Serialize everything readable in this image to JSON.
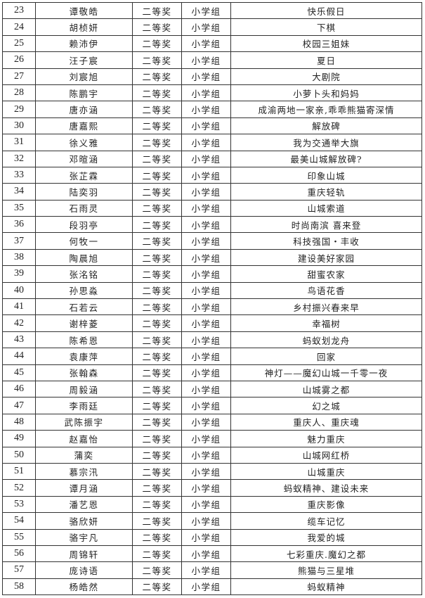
{
  "table": {
    "rows": [
      {
        "no": "23",
        "name": "谭敬皓",
        "award": "二等奖",
        "group": "小学组",
        "title": "快乐假日"
      },
      {
        "no": "24",
        "name": "胡桢妍",
        "award": "二等奖",
        "group": "小学组",
        "title": "下棋"
      },
      {
        "no": "25",
        "name": "赖沛伊",
        "award": "二等奖",
        "group": "小学组",
        "title": "校园三姐妹"
      },
      {
        "no": "26",
        "name": "汪子宸",
        "award": "二等奖",
        "group": "小学组",
        "title": "夏日"
      },
      {
        "no": "27",
        "name": "刘宸旭",
        "award": "二等奖",
        "group": "小学组",
        "title": "大剧院"
      },
      {
        "no": "28",
        "name": "陈鹏宇",
        "award": "二等奖",
        "group": "小学组",
        "title": "小萝卜头和妈妈"
      },
      {
        "no": "29",
        "name": "唐亦涵",
        "award": "二等奖",
        "group": "小学组",
        "title": "成渝两地一家亲,乖乖熊猫寄深情"
      },
      {
        "no": "30",
        "name": "唐嘉熙",
        "award": "二等奖",
        "group": "小学组",
        "title": "解放碑"
      },
      {
        "no": "31",
        "name": "徐义雅",
        "award": "二等奖",
        "group": "小学组",
        "title": "我为交通举大旗"
      },
      {
        "no": "32",
        "name": "邓暄涵",
        "award": "二等奖",
        "group": "小学组",
        "title": "最美山城解放碑?"
      },
      {
        "no": "33",
        "name": "张芷霖",
        "award": "二等奖",
        "group": "小学组",
        "title": "印象山城"
      },
      {
        "no": "34",
        "name": "陆奕羽",
        "award": "二等奖",
        "group": "小学组",
        "title": "重庆轻轨"
      },
      {
        "no": "35",
        "name": "石雨灵",
        "award": "二等奖",
        "group": "小学组",
        "title": "山城索道"
      },
      {
        "no": "36",
        "name": "段羽亭",
        "award": "二等奖",
        "group": "小学组",
        "title": "时尚南滨 喜来登"
      },
      {
        "no": "37",
        "name": "何牧一",
        "award": "二等奖",
        "group": "小学组",
        "title": "科技强国・丰收"
      },
      {
        "no": "38",
        "name": "陶晨旭",
        "award": "二等奖",
        "group": "小学组",
        "title": "建设美好家园"
      },
      {
        "no": "39",
        "name": "张洺铭",
        "award": "二等奖",
        "group": "小学组",
        "title": "甜蜜农家"
      },
      {
        "no": "40",
        "name": "孙思淼",
        "award": "二等奖",
        "group": "小学组",
        "title": "鸟语花香"
      },
      {
        "no": "41",
        "name": "石若云",
        "award": "二等奖",
        "group": "小学组",
        "title": "乡村振兴春来早"
      },
      {
        "no": "42",
        "name": "谢梓菱",
        "award": "二等奖",
        "group": "小学组",
        "title": "幸福树"
      },
      {
        "no": "43",
        "name": "陈希恩",
        "award": "二等奖",
        "group": "小学组",
        "title": "蚂蚁划龙舟"
      },
      {
        "no": "44",
        "name": "袁康萍",
        "award": "二等奖",
        "group": "小学组",
        "title": "回家"
      },
      {
        "no": "45",
        "name": "张翰森",
        "award": "二等奖",
        "group": "小学组",
        "title": "神灯——魔幻山城一千零一夜"
      },
      {
        "no": "46",
        "name": "周毅涵",
        "award": "二等奖",
        "group": "小学组",
        "title": "山城雾之都"
      },
      {
        "no": "47",
        "name": "李雨廷",
        "award": "二等奖",
        "group": "小学组",
        "title": "幻之城"
      },
      {
        "no": "48",
        "name": "武陈振宇",
        "award": "二等奖",
        "group": "小学组",
        "title": "重庆人、重庆魂"
      },
      {
        "no": "49",
        "name": "赵嘉怡",
        "award": "二等奖",
        "group": "小学组",
        "title": "魅力重庆"
      },
      {
        "no": "50",
        "name": "蒲奕",
        "award": "二等奖",
        "group": "小学组",
        "title": "山城网红桥"
      },
      {
        "no": "51",
        "name": "慕宗汛",
        "award": "二等奖",
        "group": "小学组",
        "title": "山城重庆"
      },
      {
        "no": "52",
        "name": "谭月涵",
        "award": "二等奖",
        "group": "小学组",
        "title": "蚂蚁精神、建设未来"
      },
      {
        "no": "53",
        "name": "潘艺恩",
        "award": "二等奖",
        "group": "小学组",
        "title": "重庆影像"
      },
      {
        "no": "54",
        "name": "骆欣妍",
        "award": "二等奖",
        "group": "小学组",
        "title": "缆车记忆"
      },
      {
        "no": "55",
        "name": "骆宇凡",
        "award": "二等奖",
        "group": "小学组",
        "title": "我爱的城"
      },
      {
        "no": "56",
        "name": "周锦轩",
        "award": "二等奖",
        "group": "小学组",
        "title": "七彩重庆.魔幻之都"
      },
      {
        "no": "57",
        "name": "庞诗语",
        "award": "二等奖",
        "group": "小学组",
        "title": "熊猫与三星堆"
      },
      {
        "no": "58",
        "name": "杨皓然",
        "award": "二等奖",
        "group": "小学组",
        "title": "蚂蚁精神"
      }
    ]
  }
}
